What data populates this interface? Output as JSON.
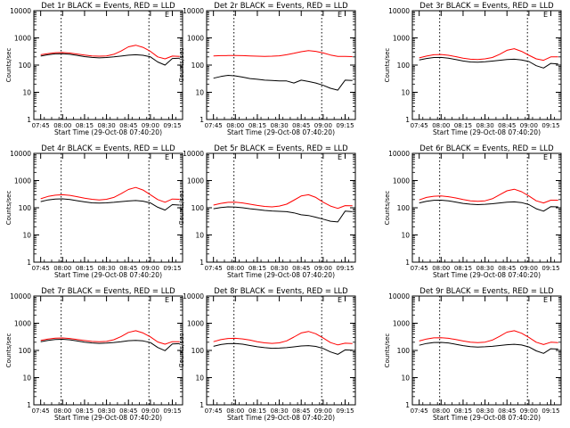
{
  "figure": {
    "xlabel": "Start Time (29-Oct-08 07:40:20)",
    "ylabel": "Counts/sec",
    "x_tick_labels": [
      "07:45",
      "08:00",
      "08:15",
      "08:30",
      "08:45",
      "09:00",
      "09:15"
    ],
    "y_tick_labels": [
      "1",
      "10",
      "100",
      "1000",
      "10000"
    ],
    "corner_mark": "E",
    "colors": {
      "events": "#000000",
      "lld": "#ff0000",
      "axes": "#000000"
    }
  },
  "chart_data": [
    {
      "type": "line",
      "title": "Det 1r BLACK = Events, RED = LLD",
      "xlabel": "Start Time (29-Oct-08 07:40:20)",
      "ylabel": "Counts/sec",
      "y_scale": "log",
      "ylim": [
        1,
        10000
      ],
      "x": [
        "07:40",
        "07:45",
        "07:50",
        "07:55",
        "08:00",
        "08:05",
        "08:10",
        "08:15",
        "08:20",
        "08:25",
        "08:30",
        "08:35",
        "08:40",
        "08:45",
        "08:50",
        "08:55",
        "09:00",
        "09:05",
        "09:10",
        "09:15",
        "09:20"
      ],
      "series": [
        {
          "values": [
            230,
            240,
            265,
            285,
            290,
            278,
            255,
            235,
            218,
            212,
            218,
            250,
            330,
            470,
            540,
            450,
            320,
            200,
            170,
            215,
            210
          ]
        },
        {
          "values": [
            200,
            215,
            240,
            258,
            262,
            250,
            228,
            205,
            192,
            185,
            190,
            200,
            215,
            232,
            240,
            230,
            200,
            130,
            100,
            175,
            180
          ]
        }
      ],
      "vlines": [
        "07:59",
        "08:59"
      ],
      "grid": false
    },
    {
      "type": "line",
      "title": "Det 2r BLACK = Events, RED = LLD",
      "xlabel": "Start Time (29-Oct-08 07:40:20)",
      "ylabel": "Counts/sec",
      "y_scale": "log",
      "ylim": [
        1,
        10000
      ],
      "x": [
        "07:40",
        "07:45",
        "07:50",
        "07:55",
        "08:00",
        "08:05",
        "08:10",
        "08:15",
        "08:20",
        "08:25",
        "08:30",
        "08:35",
        "08:40",
        "08:45",
        "08:50",
        "08:55",
        "09:00",
        "09:05",
        "09:10",
        "09:15",
        "09:20"
      ],
      "series": [
        {
          "values": [
            215,
            218,
            222,
            225,
            225,
            222,
            218,
            212,
            210,
            212,
            220,
            240,
            270,
            310,
            340,
            320,
            280,
            235,
            210,
            208,
            205
          ]
        },
        {
          "values": [
            30,
            33,
            38,
            42,
            40,
            36,
            32,
            30,
            28,
            27,
            26,
            26,
            22,
            28,
            25,
            22,
            18,
            14,
            12,
            28,
            27
          ]
        }
      ],
      "vlines": [
        "07:59",
        "08:59"
      ],
      "grid": false
    },
    {
      "type": "line",
      "title": "Det 3r BLACK = Events, RED = LLD",
      "xlabel": "Start Time (29-Oct-08 07:40:20)",
      "ylabel": "Counts/sec",
      "y_scale": "log",
      "ylim": [
        1,
        10000
      ],
      "x": [
        "07:40",
        "07:45",
        "07:50",
        "07:55",
        "08:00",
        "08:05",
        "08:10",
        "08:15",
        "08:20",
        "08:25",
        "08:30",
        "08:35",
        "08:40",
        "08:45",
        "08:50",
        "08:55",
        "09:00",
        "09:05",
        "09:10",
        "09:15",
        "09:20"
      ],
      "series": [
        {
          "values": [
            165,
            185,
            215,
            240,
            245,
            230,
            205,
            180,
            165,
            160,
            170,
            190,
            250,
            350,
            400,
            320,
            230,
            170,
            150,
            200,
            200
          ]
        },
        {
          "values": [
            140,
            155,
            175,
            190,
            192,
            180,
            160,
            142,
            130,
            128,
            132,
            140,
            150,
            160,
            165,
            155,
            135,
            95,
            78,
            115,
            110
          ]
        }
      ],
      "vlines": [
        "07:59",
        "08:59"
      ],
      "grid": false
    },
    {
      "type": "line",
      "title": "Det 4r BLACK = Events, RED = LLD",
      "xlabel": "Start Time (29-Oct-08 07:40:20)",
      "ylabel": "Counts/sec",
      "y_scale": "log",
      "ylim": [
        1,
        10000
      ],
      "x": [
        "07:40",
        "07:45",
        "07:50",
        "07:55",
        "08:00",
        "08:05",
        "08:10",
        "08:15",
        "08:20",
        "08:25",
        "08:30",
        "08:35",
        "08:40",
        "08:45",
        "08:50",
        "08:55",
        "09:00",
        "09:05",
        "09:10",
        "09:15",
        "09:20"
      ],
      "series": [
        {
          "values": [
            190,
            215,
            260,
            290,
            300,
            285,
            255,
            225,
            205,
            195,
            205,
            240,
            330,
            470,
            560,
            450,
            300,
            200,
            160,
            210,
            205
          ]
        },
        {
          "values": [
            150,
            168,
            195,
            210,
            212,
            200,
            182,
            165,
            152,
            148,
            152,
            158,
            168,
            178,
            185,
            175,
            150,
            105,
            82,
            130,
            125
          ]
        }
      ],
      "vlines": [
        "07:59",
        "08:59"
      ],
      "grid": false
    },
    {
      "type": "line",
      "title": "Det 5r BLACK = Events, RED = LLD",
      "xlabel": "Start Time (29-Oct-08 07:40:20)",
      "ylabel": "Counts/sec",
      "y_scale": "log",
      "ylim": [
        1,
        10000
      ],
      "x": [
        "07:40",
        "07:45",
        "07:50",
        "07:55",
        "08:00",
        "08:05",
        "08:10",
        "08:15",
        "08:20",
        "08:25",
        "08:30",
        "08:35",
        "08:40",
        "08:45",
        "08:50",
        "08:55",
        "09:00",
        "09:05",
        "09:10",
        "09:15",
        "09:20"
      ],
      "series": [
        {
          "values": [
            110,
            125,
            145,
            158,
            160,
            150,
            135,
            122,
            112,
            108,
            115,
            135,
            190,
            270,
            300,
            240,
            160,
            115,
            95,
            120,
            118
          ]
        },
        {
          "values": [
            85,
            92,
            102,
            108,
            106,
            100,
            92,
            86,
            80,
            76,
            74,
            72,
            65,
            55,
            52,
            45,
            38,
            32,
            30,
            75,
            72
          ]
        }
      ],
      "vlines": [
        "07:59",
        "08:59"
      ],
      "grid": false
    },
    {
      "type": "line",
      "title": "Det 6r BLACK = Events, RED = LLD",
      "xlabel": "Start Time (29-Oct-08 07:40:20)",
      "ylabel": "Counts/sec",
      "y_scale": "log",
      "ylim": [
        1,
        10000
      ],
      "x": [
        "07:40",
        "07:45",
        "07:50",
        "07:55",
        "08:00",
        "08:05",
        "08:10",
        "08:15",
        "08:20",
        "08:25",
        "08:30",
        "08:35",
        "08:40",
        "08:45",
        "08:50",
        "08:55",
        "09:00",
        "09:05",
        "09:10",
        "09:15",
        "09:20"
      ],
      "series": [
        {
          "values": [
            170,
            195,
            240,
            265,
            270,
            255,
            230,
            200,
            180,
            172,
            180,
            215,
            300,
            420,
            480,
            390,
            270,
            180,
            150,
            190,
            190
          ]
        },
        {
          "values": [
            135,
            150,
            172,
            188,
            190,
            180,
            162,
            145,
            135,
            130,
            134,
            140,
            150,
            160,
            165,
            155,
            130,
            92,
            75,
            110,
            108
          ]
        }
      ],
      "vlines": [
        "07:59",
        "08:59"
      ],
      "grid": false
    },
    {
      "type": "line",
      "title": "Det 7r BLACK = Events, RED = LLD",
      "xlabel": "Start Time (29-Oct-08 07:40:20)",
      "ylabel": "Counts/sec",
      "y_scale": "log",
      "ylim": [
        1,
        10000
      ],
      "x": [
        "07:40",
        "07:45",
        "07:50",
        "07:55",
        "08:00",
        "08:05",
        "08:10",
        "08:15",
        "08:20",
        "08:25",
        "08:30",
        "08:35",
        "08:40",
        "08:45",
        "08:50",
        "08:55",
        "09:00",
        "09:05",
        "09:10",
        "09:15",
        "09:20"
      ],
      "series": [
        {
          "values": [
            220,
            235,
            260,
            282,
            288,
            275,
            252,
            232,
            215,
            210,
            215,
            248,
            325,
            460,
            530,
            440,
            315,
            205,
            170,
            210,
            208
          ]
        },
        {
          "values": [
            195,
            210,
            235,
            252,
            256,
            245,
            222,
            200,
            188,
            182,
            186,
            196,
            210,
            228,
            235,
            225,
            195,
            128,
            98,
            172,
            178
          ]
        }
      ],
      "vlines": [
        "07:59",
        "08:59"
      ],
      "grid": false
    },
    {
      "type": "line",
      "title": "Det 8r BLACK = Events, RED = LLD",
      "xlabel": "Start Time (29-Oct-08 07:40:20)",
      "ylabel": "Counts/sec",
      "y_scale": "log",
      "ylim": [
        1,
        10000
      ],
      "x": [
        "07:40",
        "07:45",
        "07:50",
        "07:55",
        "08:00",
        "08:05",
        "08:10",
        "08:15",
        "08:20",
        "08:25",
        "08:30",
        "08:35",
        "08:40",
        "08:45",
        "08:50",
        "08:55",
        "09:00",
        "09:05",
        "09:10",
        "09:15",
        "09:20"
      ],
      "series": [
        {
          "values": [
            185,
            210,
            250,
            275,
            280,
            265,
            240,
            210,
            190,
            182,
            190,
            225,
            310,
            440,
            500,
            410,
            285,
            195,
            160,
            185,
            180
          ]
        },
        {
          "values": [
            130,
            142,
            165,
            178,
            180,
            170,
            152,
            136,
            126,
            120,
            122,
            126,
            135,
            146,
            150,
            140,
            118,
            88,
            72,
            105,
            102
          ]
        }
      ],
      "vlines": [
        "07:59",
        "08:59"
      ],
      "grid": false
    },
    {
      "type": "line",
      "title": "Det 9r BLACK = Events, RED = LLD",
      "xlabel": "Start Time (29-Oct-08 07:40:20)",
      "ylabel": "Counts/sec",
      "y_scale": "log",
      "ylim": [
        1,
        10000
      ],
      "x": [
        "07:40",
        "07:45",
        "07:50",
        "07:55",
        "08:00",
        "08:05",
        "08:10",
        "08:15",
        "08:20",
        "08:25",
        "08:30",
        "08:35",
        "08:40",
        "08:45",
        "08:50",
        "08:55",
        "09:00",
        "09:05",
        "09:10",
        "09:15",
        "09:20"
      ],
      "series": [
        {
          "values": [
            200,
            222,
            262,
            290,
            295,
            280,
            252,
            222,
            202,
            195,
            202,
            240,
            330,
            470,
            530,
            430,
            300,
            200,
            165,
            200,
            195
          ]
        },
        {
          "values": [
            140,
            155,
            180,
            196,
            198,
            188,
            168,
            150,
            138,
            133,
            136,
            142,
            152,
            162,
            168,
            158,
            134,
            96,
            78,
            115,
            112
          ]
        }
      ],
      "vlines": [
        "07:59",
        "08:59"
      ],
      "grid": false
    }
  ]
}
